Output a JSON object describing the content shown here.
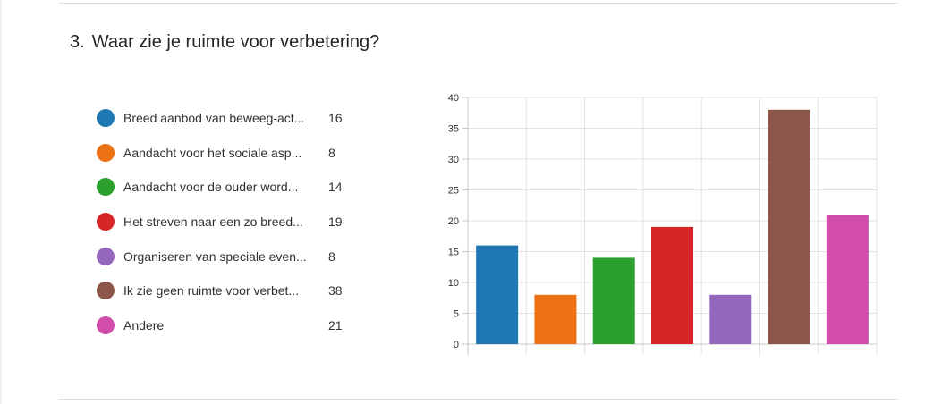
{
  "question": {
    "number": "3.",
    "title": "Waar zie je ruimte voor verbetering?"
  },
  "legend": [
    {
      "label": "Breed aanbod van beweeg-act...",
      "count": "16",
      "color": "#1f77b4"
    },
    {
      "label": "Aandacht voor het sociale asp...",
      "count": "8",
      "color": "#ec7014"
    },
    {
      "label": "Aandacht voor de ouder word...",
      "count": "14",
      "color": "#2ca02c"
    },
    {
      "label": "Het streven naar een zo breed...",
      "count": "19",
      "color": "#d62728"
    },
    {
      "label": "Organiseren van speciale even...",
      "count": "8",
      "color": "#9467bd"
    },
    {
      "label": "Ik zie geen ruimte voor verbet...",
      "count": "38",
      "color": "#8c564b"
    },
    {
      "label": "Andere",
      "count": "21",
      "color": "#d24cac"
    }
  ],
  "chart_data": {
    "type": "bar",
    "categories": [
      "Breed aanbod van beweeg-act...",
      "Aandacht voor het sociale asp...",
      "Aandacht voor de ouder word...",
      "Het streven naar een zo breed...",
      "Organiseren van speciale even...",
      "Ik zie geen ruimte voor verbet...",
      "Andere"
    ],
    "values": [
      16,
      8,
      14,
      19,
      8,
      38,
      21
    ],
    "colors": [
      "#1f77b4",
      "#ec7014",
      "#2ca02c",
      "#d62728",
      "#9467bd",
      "#8c564b",
      "#d24cac"
    ],
    "ylim": [
      0,
      40
    ],
    "yticks": [
      0,
      5,
      10,
      15,
      20,
      25,
      30,
      35,
      40
    ],
    "grid": true,
    "title": "",
    "xlabel": "",
    "ylabel": ""
  }
}
